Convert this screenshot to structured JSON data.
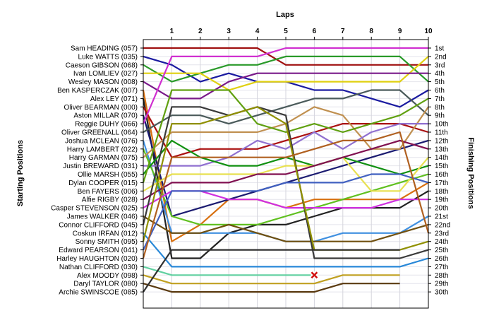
{
  "chart_data": {
    "type": "line",
    "title": "",
    "xlabel": "Laps",
    "ylabel_left": "Starting Positions",
    "ylabel_right": "Finishing Positions",
    "x": [
      0,
      1,
      2,
      3,
      4,
      5,
      6,
      7,
      8,
      9,
      10
    ],
    "lap_labels": [
      "1",
      "2",
      "3",
      "4",
      "5",
      "6",
      "7",
      "8",
      "9",
      "10"
    ],
    "y_inverted": true,
    "ylim": [
      1,
      30
    ],
    "grid": true,
    "drivers": [
      "Sam HEADING (057)",
      "Luke WATTS (035)",
      "Caeson GIBSON (068)",
      "Ivan LOMLIEV (027)",
      "Wesley MASON (008)",
      "Ben KASPERCZAK (007)",
      "Alex LEY (071)",
      "Oliver BEARMAN (000)",
      "Aston MILLAR (070)",
      "Reggie DUHY (066)",
      "Oliver GREENALL (064)",
      "Joshua MCLEAN (076)",
      "Harry LAMBERT (022)",
      "Harry GARMAN (075)",
      "Justin BREWARD (031)",
      "Ollie MARSH (055)",
      "Dylan COOPER (015)",
      "Ben FAYERS (006)",
      "Alfie RIGBY (028)",
      "Casper STEVENSON (025)",
      "James WALKER (046)",
      "Connor CLIFFORD (045)",
      "Coskun IRFAN (012)",
      "Sonny SMITH (095)",
      "Edward PEARSON (041)",
      "Harley HAUGHTON (020)",
      "Nathan CLIFFORD (030)",
      "Alex MOODY (098)",
      "Daryl TAYLOR (080)",
      "Archie SWINSCOE (085)"
    ],
    "finishing_labels": [
      "1st",
      "2nd",
      "3rd",
      "4th",
      "5th",
      "6th",
      "7th",
      "8th",
      "9th",
      "10th",
      "11th",
      "12th",
      "13th",
      "14th",
      "15th",
      "16th",
      "17th",
      "18th",
      "19th",
      "20th",
      "21st",
      "22nd",
      "23rd",
      "24th",
      "25th",
      "26th",
      "27th",
      "28th",
      "29th",
      "30th"
    ],
    "series": [
      {
        "color": "#a01010",
        "positions": [
          1,
          1,
          1,
          1,
          1,
          3,
          3,
          3,
          3,
          3,
          3
        ]
      },
      {
        "color": "#1a1aa0",
        "positions": [
          2,
          3,
          5,
          4,
          5,
          5,
          6,
          6,
          7,
          8,
          6
        ]
      },
      {
        "color": "#2a9a2a",
        "positions": [
          3,
          5,
          4,
          3,
          3,
          2,
          2,
          2,
          2,
          2,
          5
        ]
      },
      {
        "color": "#e0d010",
        "positions": [
          4,
          4,
          4,
          6,
          5,
          5,
          5,
          5,
          5,
          5,
          2
        ]
      },
      {
        "color": "#7a1a8a",
        "positions": [
          5,
          7,
          7,
          5,
          4,
          4,
          4,
          4,
          4,
          4,
          4
        ]
      },
      {
        "color": "#d87010",
        "positions": [
          6,
          24,
          22,
          19,
          19,
          20,
          19,
          19,
          19,
          19,
          17
        ]
      },
      {
        "color": "#222222",
        "positions": [
          7,
          26,
          26,
          23,
          22,
          22,
          21,
          20,
          20,
          20,
          18
        ]
      },
      {
        "color": "#aa1010",
        "positions": [
          8,
          14,
          13,
          13,
          13,
          12,
          11,
          10,
          10,
          10,
          11
        ]
      },
      {
        "color": "#1a1a70",
        "positions": [
          9,
          21,
          20,
          19,
          18,
          17,
          16,
          15,
          14,
          13,
          12
        ]
      },
      {
        "color": "#d030d0",
        "positions": [
          10,
          2,
          2,
          2,
          2,
          1,
          1,
          1,
          1,
          1,
          1
        ]
      },
      {
        "color": "#4a5a5a",
        "positions": [
          11,
          9,
          9,
          10,
          9,
          8,
          7,
          7,
          6,
          6,
          9
        ]
      },
      {
        "color": "#4090e0",
        "positions": [
          12,
          23,
          23,
          23,
          23,
          24,
          24,
          23,
          23,
          23,
          21
        ]
      },
      {
        "color": "#60c020",
        "positions": [
          13,
          21,
          22,
          22,
          22,
          21,
          20,
          19,
          18,
          17,
          16
        ]
      },
      {
        "color": "#c09050",
        "positions": [
          14,
          11,
          11,
          11,
          11,
          10,
          8,
          9,
          13,
          13,
          8
        ]
      },
      {
        "color": "#9070d0",
        "positions": [
          15,
          15,
          15,
          14,
          12,
          13,
          11,
          13,
          11,
          10,
          10
        ]
      },
      {
        "color": "#109010",
        "positions": [
          16,
          12,
          14,
          15,
          15,
          14,
          15,
          14,
          15,
          16,
          15
        ]
      },
      {
        "color": "#60a010",
        "positions": [
          17,
          6,
          6,
          6,
          10,
          11,
          10,
          11,
          10,
          9,
          7
        ]
      },
      {
        "color": "#e8e050",
        "positions": [
          18,
          16,
          16,
          16,
          16,
          15,
          15,
          14,
          18,
          18,
          14
        ]
      },
      {
        "color": "#801050",
        "positions": [
          19,
          17,
          17,
          17,
          16,
          16,
          15,
          14,
          13,
          12,
          13
        ]
      },
      {
        "color": "#d030e0",
        "positions": [
          20,
          18,
          18,
          19,
          19,
          20,
          20,
          20,
          20,
          19,
          19
        ]
      },
      {
        "color": "#705010",
        "positions": [
          21,
          23,
          23,
          22,
          23,
          24,
          24,
          24,
          24,
          23,
          22
        ]
      },
      {
        "color": "#3a3a3a",
        "positions": [
          22,
          8,
          8,
          9,
          8,
          9,
          26,
          26,
          26,
          26,
          25
        ]
      },
      {
        "color": "#2888d8",
        "positions": [
          23,
          27,
          27,
          27,
          27,
          27,
          27,
          27,
          27,
          27,
          26
        ]
      },
      {
        "color": "#909000",
        "positions": [
          24,
          10,
          10,
          9,
          8,
          10,
          25,
          25,
          25,
          25,
          24
        ]
      },
      {
        "color": "#4060c0",
        "positions": [
          25,
          18,
          18,
          18,
          18,
          17,
          17,
          17,
          16,
          16,
          17
        ]
      },
      {
        "color": "#b06020",
        "positions": [
          26,
          14,
          14,
          14,
          14,
          14,
          13,
          12,
          12,
          11,
          23
        ]
      },
      {
        "color": "#60d0a0",
        "positions": [
          27,
          28,
          28,
          28,
          28,
          28,
          28,
          null,
          null,
          null,
          null
        ]
      },
      {
        "color": "#c0a020",
        "positions": [
          28,
          29,
          29,
          29,
          29,
          29,
          29,
          28,
          28,
          28,
          null
        ]
      },
      {
        "color": "#5a3a10",
        "positions": [
          29,
          30,
          30,
          30,
          30,
          30,
          30,
          29,
          29,
          29,
          null
        ]
      },
      {
        "color": "#303030",
        "positions": [
          30,
          25,
          25,
          25,
          25,
          25,
          25,
          25,
          25,
          25,
          null
        ]
      }
    ],
    "annotations": [
      {
        "marker": "x",
        "lap": 6,
        "position": 28,
        "color": "#d01010"
      }
    ]
  }
}
